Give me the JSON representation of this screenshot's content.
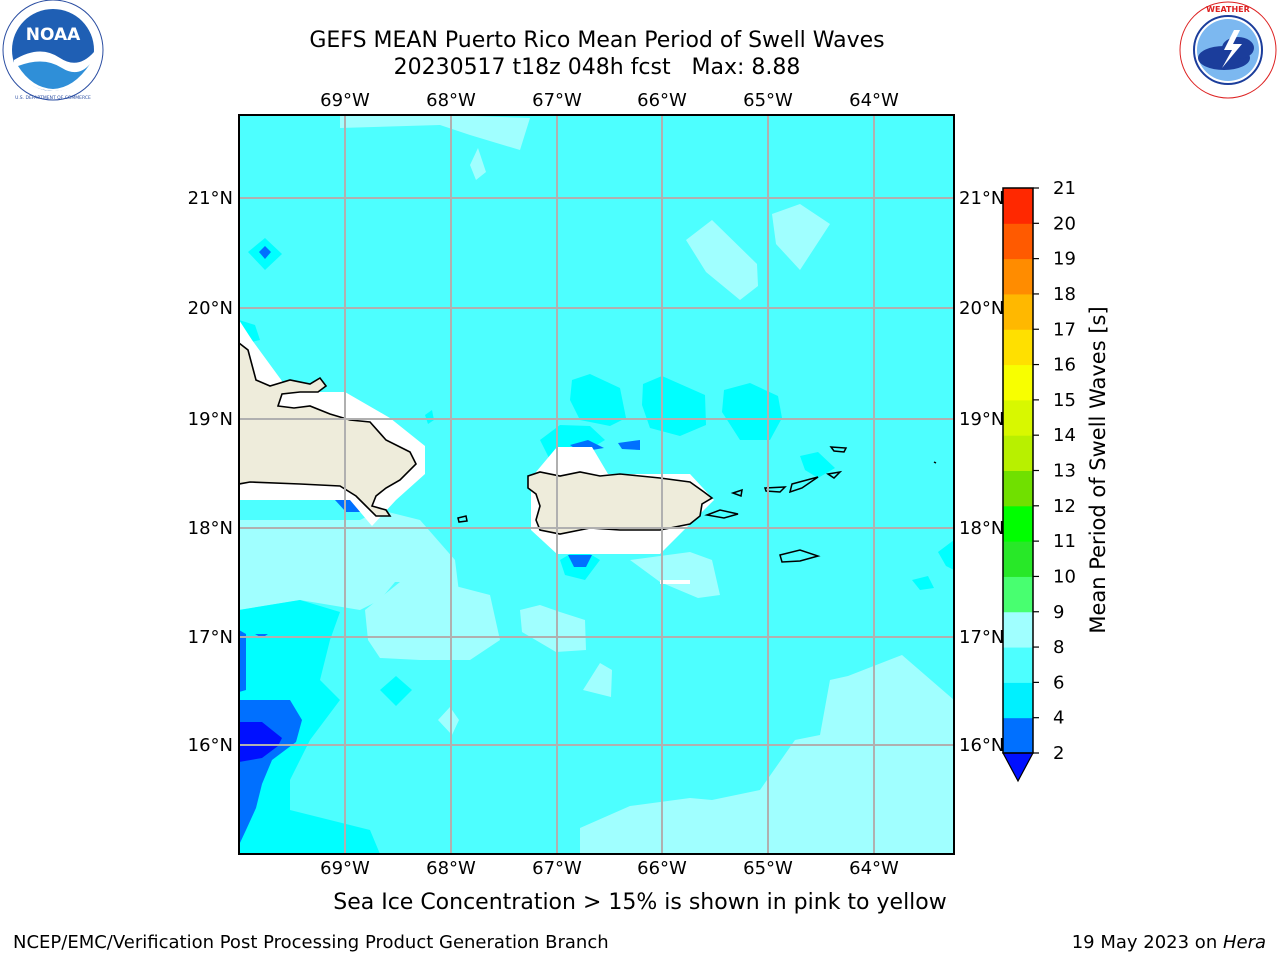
{
  "header": {
    "title_line1": "GEFS MEAN Puerto Rico Mean Period of Swell Waves",
    "title_line2": "20230517 t18z 048h fcst   Max: 8.88"
  },
  "logos": {
    "left": {
      "name": "NOAA",
      "ring_text": "NATIONAL OCEANIC AND ATMOSPHERIC ADMINISTRATION • U.S. DEPARTMENT OF COMMERCE"
    },
    "right": {
      "name": "National Weather Service",
      "ring_text": "NATIONAL WEATHER SERVICE"
    }
  },
  "map": {
    "lon_labels": [
      "69°W",
      "68°W",
      "67°W",
      "66°W",
      "65°W",
      "64°W"
    ],
    "lat_labels": [
      "21°N",
      "20°N",
      "19°N",
      "18°N",
      "17°N",
      "16°N"
    ],
    "ocean_color": "#4dffff",
    "land_color": "#eeecdb"
  },
  "colorbar": {
    "label": "Mean Period of Swell Waves [s]",
    "ticks": [
      "2",
      "4",
      "6",
      "8",
      "9",
      "10",
      "11",
      "12",
      "13",
      "14",
      "15",
      "16",
      "17",
      "18",
      "19",
      "20",
      "21"
    ],
    "colors": [
      "#0070ff",
      "#00f0ff",
      "#4dffff",
      "#a0ffff",
      "#48ff70",
      "#28e828",
      "#00ff00",
      "#70e000",
      "#b8f000",
      "#d8f800",
      "#f8ff00",
      "#ffe000",
      "#ffb800",
      "#ff8c00",
      "#ff5a00",
      "#ff2800",
      "#ff0000"
    ],
    "under_color": "#0010ff"
  },
  "footer": {
    "caption": "Sea Ice Concentration > 15% is shown in pink to yellow",
    "left": "NCEP/EMC/Verification Post Processing Product Generation Branch",
    "right_date": "19 May 2023 on ",
    "right_host": "Hera"
  }
}
